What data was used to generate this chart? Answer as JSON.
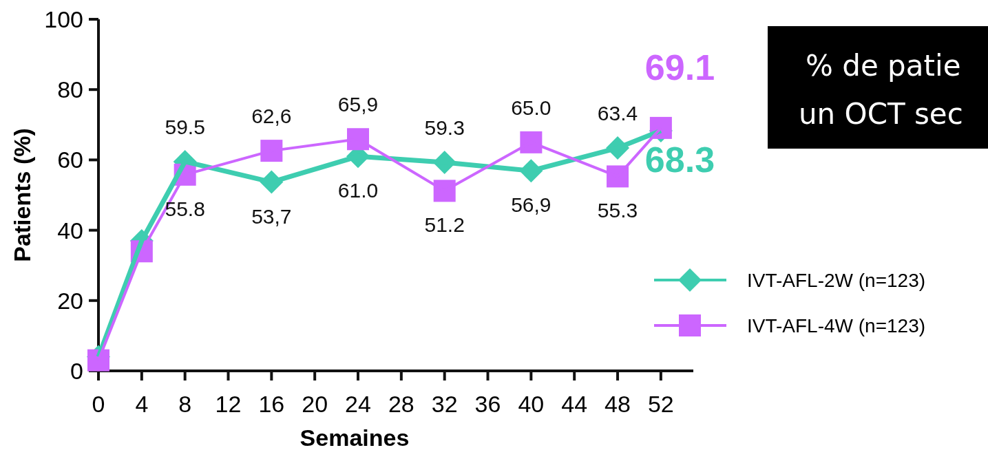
{
  "chart_data": {
    "type": "line",
    "xlabel": "Semaines",
    "ylabel": "Patients (%)",
    "x": [
      0,
      4,
      8,
      16,
      24,
      32,
      40,
      48,
      52
    ],
    "xlim": [
      0,
      55
    ],
    "xticks": [
      0,
      4,
      8,
      12,
      16,
      20,
      24,
      28,
      32,
      36,
      40,
      44,
      48,
      52
    ],
    "ylim": [
      0,
      100
    ],
    "yticks": [
      0,
      20,
      40,
      60,
      80,
      100
    ],
    "grid": false,
    "legend": "right",
    "annotations": [
      "% de patie",
      "un OCT sec"
    ],
    "series": [
      {
        "name": "IVT-AFL-2W (n=123)",
        "color": "#3ecdb0",
        "marker": "diamond",
        "values": [
          4,
          37,
          59.5,
          53.7,
          61.0,
          59.3,
          56.9,
          63.4,
          68.3
        ],
        "value_labels": [
          null,
          null,
          "59.5",
          "53,7",
          "61.0",
          "59.3",
          "56,9",
          "63.4",
          "68.3"
        ]
      },
      {
        "name": "IVT-AFL-4W (n=123)",
        "color": "#cc66ff",
        "marker": "square",
        "values": [
          3,
          34,
          55.8,
          62.6,
          65.9,
          51.2,
          65.0,
          55.3,
          69.1
        ],
        "value_labels": [
          null,
          null,
          "55.8",
          "62,6",
          "65,9",
          "51.2",
          "65.0",
          "55.3",
          "69.1"
        ]
      }
    ]
  }
}
